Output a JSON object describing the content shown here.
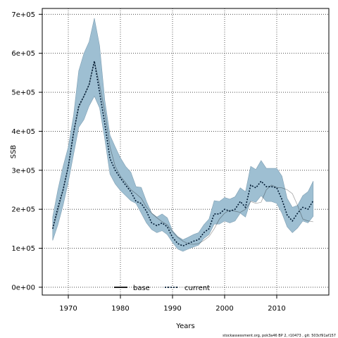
{
  "chart_data": {
    "type": "line",
    "xlabel": "Years",
    "ylabel": "SSB",
    "xlim": [
      1965,
      2020
    ],
    "ylim": [
      -20000,
      715000
    ],
    "xticks": [
      1970,
      1980,
      1990,
      2000,
      2010
    ],
    "xtick_labels": [
      "1970",
      "1980",
      "1990",
      "2000",
      "2010"
    ],
    "yticks": [
      0,
      100000,
      200000,
      300000,
      400000,
      500000,
      600000,
      700000
    ],
    "ytick_labels": [
      "0e+00",
      "1e+05",
      "2e+05",
      "3e+05",
      "4e+05",
      "5e+05",
      "6e+05",
      "7e+05"
    ],
    "grid": true,
    "legend_position": "bottom-center",
    "colors": {
      "band_fill": "#9ebfd2",
      "band_edge": "#7f9fb3",
      "current_line": "#001a33",
      "base_line": "#000000"
    },
    "x": [
      1967,
      1968,
      1969,
      1970,
      1971,
      1972,
      1973,
      1974,
      1975,
      1976,
      1977,
      1978,
      1979,
      1980,
      1981,
      1982,
      1983,
      1984,
      1985,
      1986,
      1987,
      1988,
      1989,
      1990,
      1991,
      1992,
      1993,
      1994,
      1995,
      1996,
      1997,
      1998,
      1999,
      2000,
      2001,
      2002,
      2003,
      2004,
      2005,
      2006,
      2007,
      2008,
      2009,
      2010,
      2011,
      2012,
      2013,
      2014,
      2015,
      2016,
      2017
    ],
    "series": [
      {
        "name": "base",
        "style": "solid",
        "values": [
          150000,
          195000,
          250000,
          310000,
          395000,
          460000,
          490000,
          520000,
          580000,
          520000,
          450000,
          360000,
          310000,
          285000,
          268000,
          250000,
          240000,
          228000,
          205000,
          190000,
          178000,
          168000,
          160000,
          142000,
          128000,
          118000,
          112000,
          110000,
          112000,
          120000,
          130000,
          150000,
          175000,
          190000,
          198000,
          195000,
          192000,
          200000,
          220000,
          215000,
          218000,
          250000,
          262000,
          256000,
          255000,
          250000,
          240000,
          210000,
          175000,
          170000,
          168000
        ]
      },
      {
        "name": "current",
        "style": "dotted",
        "values": [
          150000,
          205000,
          250000,
          310000,
          395000,
          465000,
          490000,
          520000,
          580000,
          500000,
          420000,
          330000,
          300000,
          280000,
          262000,
          245000,
          220000,
          215000,
          195000,
          165000,
          158000,
          165000,
          155000,
          128000,
          112000,
          106000,
          112000,
          118000,
          122000,
          140000,
          150000,
          188000,
          188000,
          200000,
          195000,
          200000,
          220000,
          205000,
          262000,
          255000,
          272000,
          258000,
          258000,
          255000,
          225000,
          185000,
          170000,
          190000,
          205000,
          200000,
          222000
        ]
      }
    ],
    "band": {
      "lower": [
        120000,
        160000,
        210000,
        270000,
        340000,
        410000,
        430000,
        465000,
        490000,
        460000,
        380000,
        290000,
        265000,
        248000,
        235000,
        222000,
        215000,
        190000,
        165000,
        148000,
        140000,
        145000,
        135000,
        115000,
        98000,
        92000,
        98000,
        103000,
        108000,
        125000,
        135000,
        162000,
        162000,
        170000,
        165000,
        170000,
        190000,
        180000,
        222000,
        218000,
        235000,
        220000,
        220000,
        215000,
        190000,
        155000,
        140000,
        152000,
        170000,
        165000,
        182000
      ],
      "upper": [
        180000,
        250000,
        310000,
        360000,
        440000,
        555000,
        600000,
        630000,
        690000,
        620000,
        480000,
        390000,
        360000,
        332000,
        310000,
        295000,
        258000,
        256000,
        220000,
        190000,
        180000,
        188000,
        178000,
        145000,
        130000,
        122000,
        128000,
        135000,
        140000,
        160000,
        175000,
        222000,
        220000,
        230000,
        226000,
        232000,
        255000,
        245000,
        310000,
        302000,
        325000,
        305000,
        305000,
        305000,
        285000,
        228000,
        205000,
        210000,
        235000,
        245000,
        272000
      ]
    }
  },
  "footer": "stockassessment.org, pok3a46 BP 2, r10473 , git: 503cf91af157"
}
